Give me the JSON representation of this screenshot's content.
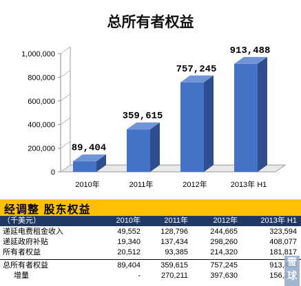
{
  "chart_data": {
    "type": "bar",
    "title": "总所有者权益",
    "categories": [
      "2010年",
      "2011年",
      "2012年",
      "2013年 H1"
    ],
    "values": [
      89404,
      359615,
      757245,
      913488
    ],
    "data_labels": [
      "89,404",
      "359,615",
      "757,245",
      "913,488"
    ],
    "yticks": [
      "0",
      "200,000",
      "400,000",
      "600,000",
      "800,000",
      "1,000,000"
    ],
    "ylim": [
      0,
      1000000
    ],
    "bar_color": "#4472c4",
    "bar_side_color": "#2e4e8f",
    "bar_top_color": "#6f95d8",
    "grid": false,
    "legend": false
  },
  "table": {
    "section_title": "经调整  股东权益",
    "header_color": "#ffc000",
    "columns_bg": "#1f3864",
    "columns": [
      "（千美元）",
      "2010年",
      "2011年",
      "2012年",
      "2013年 H1"
    ],
    "rows": [
      [
        "递延电费租金收入",
        "49,552",
        "128,796",
        "244,665",
        "323,594"
      ],
      [
        "递延政府补贴",
        "19,340",
        "137,434",
        "298,260",
        "408,077"
      ],
      [
        "所有者权益",
        "20,512",
        "93,385",
        "214,320",
        "181,817"
      ]
    ],
    "total_row": [
      "总所有者权益",
      "89,404",
      "359,615",
      "757,245",
      "913,488"
    ],
    "growth_row": [
      "增量",
      "-",
      "270,211",
      "397,630",
      "156,243"
    ]
  },
  "watermark": {
    "text": "雪球"
  }
}
